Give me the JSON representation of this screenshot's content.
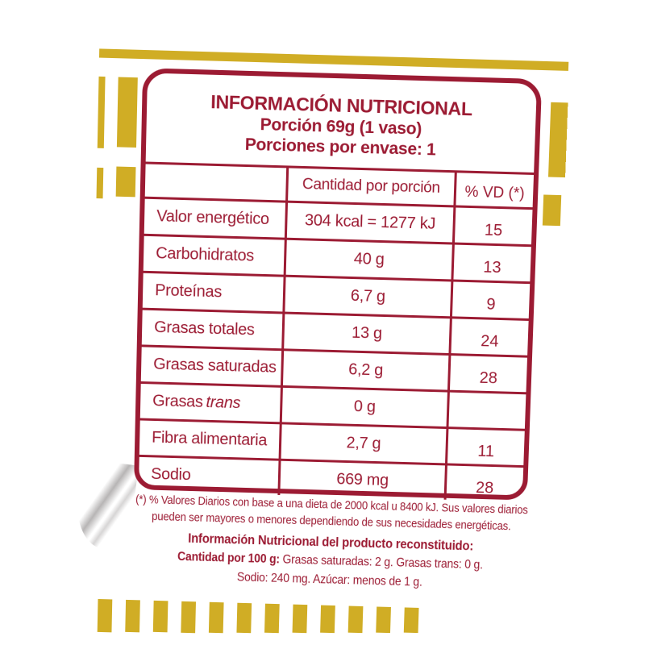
{
  "colors": {
    "accent_red": "#9C1B33",
    "accent_yellow": "#D0AD25"
  },
  "header": {
    "title": "INFORMACIÓN NUTRICIONAL",
    "portion": "Porción 69g (1 vaso)",
    "servings": "Porciones por envase: 1"
  },
  "table": {
    "col_amount": "Cantidad por porción",
    "col_vd": "% VD (*)",
    "rows": [
      {
        "label": "Valor energético",
        "italic": "",
        "amount": "304 kcal = 1277 kJ",
        "vd": "15"
      },
      {
        "label": "Carbohidratos",
        "italic": "",
        "amount": "40 g",
        "vd": "13"
      },
      {
        "label": "Proteínas",
        "italic": "",
        "amount": "6,7 g",
        "vd": "9"
      },
      {
        "label": "Grasas totales",
        "italic": "",
        "amount": "13 g",
        "vd": "24"
      },
      {
        "label": "Grasas saturadas",
        "italic": "",
        "amount": "6,2 g",
        "vd": "28"
      },
      {
        "label": "Grasas",
        "italic": "trans",
        "amount": "0 g",
        "vd": ""
      },
      {
        "label": "Fibra alimentaria",
        "italic": "",
        "amount": "2,7 g",
        "vd": "11"
      },
      {
        "label": "Sodio",
        "italic": "",
        "amount": "669 mg",
        "vd": "28"
      }
    ]
  },
  "footnote": {
    "line1": "(*) % Valores Diarios con base a una dieta de 2000 kcal u 8400 kJ. Sus valores diarios",
    "line2": "pueden ser mayores o menores dependiendo de sus necesidades energéticas."
  },
  "reconstituted": {
    "heading": "Información Nutricional del producto reconstituido:",
    "line1_bold": "Cantidad por 100 g:",
    "line1_rest": " Grasas saturadas: 2 g. Grasas trans: 0 g.",
    "line2": "Sodio: 240 mg. Azúcar: menos de 1 g."
  }
}
